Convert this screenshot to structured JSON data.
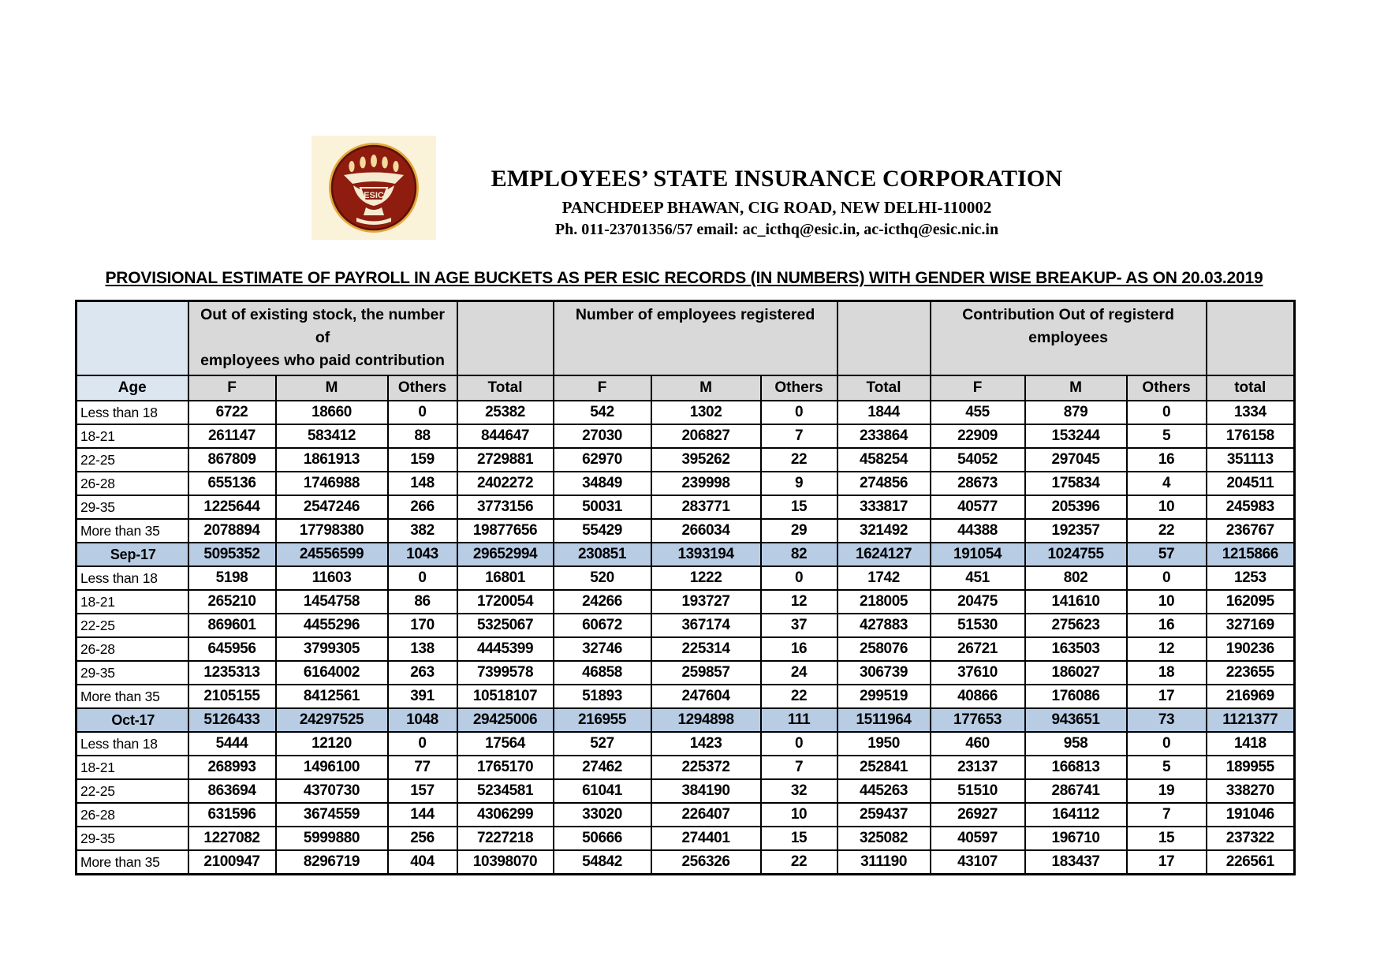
{
  "letterhead": {
    "org_name": "EMPLOYEES’ STATE INSURANCE CORPORATION",
    "address": "PANCHDEEP BHAWAN, CIG ROAD, NEW DELHI-110002",
    "contact": "Ph. 011-23701356/57 email: ac_icthq@esic.in, ac-icthq@esic.nic.in",
    "logo": {
      "acronym": "ESIC"
    }
  },
  "document_title": "PROVISIONAL ESTIMATE OF PAYROLL IN AGE BUCKETS AS PER ESIC RECORDS (IN NUMBERS) WITH GENDER WISE BREAKUP- AS ON 20.03.2019",
  "table": {
    "group_headers": [
      "Out of existing stock, the number\nof\nemployees who paid contribution",
      "Number of employees registered",
      "Contribution  Out of  registerd\nemployees"
    ],
    "column_headers": [
      "Age",
      "F",
      "M",
      "Others",
      "Total",
      "F",
      "M",
      "Others",
      "Total",
      "F",
      "M",
      "Others",
      "total"
    ],
    "colors": {
      "header_gray": "#d9d9d9",
      "age_header_blue": "#dce6f1",
      "highlight_blue": "#b8cce4",
      "border": "#000000"
    },
    "rows": [
      {
        "label": "Less than 18",
        "highlight": false,
        "values": [
          6722,
          18660,
          0,
          25382,
          542,
          1302,
          0,
          1844,
          455,
          879,
          0,
          1334
        ]
      },
      {
        "label": "18-21",
        "highlight": false,
        "values": [
          261147,
          583412,
          88,
          844647,
          27030,
          206827,
          7,
          233864,
          22909,
          153244,
          5,
          176158
        ]
      },
      {
        "label": "22-25",
        "highlight": false,
        "values": [
          867809,
          1861913,
          159,
          2729881,
          62970,
          395262,
          22,
          458254,
          54052,
          297045,
          16,
          351113
        ]
      },
      {
        "label": "26-28",
        "highlight": false,
        "values": [
          655136,
          1746988,
          148,
          2402272,
          34849,
          239998,
          9,
          274856,
          28673,
          175834,
          4,
          204511
        ]
      },
      {
        "label": "29-35",
        "highlight": false,
        "values": [
          1225644,
          2547246,
          266,
          3773156,
          50031,
          283771,
          15,
          333817,
          40577,
          205396,
          10,
          245983
        ]
      },
      {
        "label": "More than 35",
        "highlight": false,
        "values": [
          2078894,
          17798380,
          382,
          19877656,
          55429,
          266034,
          29,
          321492,
          44388,
          192357,
          22,
          236767
        ]
      },
      {
        "label": "Sep-17",
        "highlight": true,
        "values": [
          5095352,
          24556599,
          1043,
          29652994,
          230851,
          1393194,
          82,
          1624127,
          191054,
          1024755,
          57,
          1215866
        ]
      },
      {
        "label": "Less than 18",
        "highlight": false,
        "values": [
          5198,
          11603,
          0,
          16801,
          520,
          1222,
          0,
          1742,
          451,
          802,
          0,
          1253
        ]
      },
      {
        "label": "18-21",
        "highlight": false,
        "values": [
          265210,
          1454758,
          86,
          1720054,
          24266,
          193727,
          12,
          218005,
          20475,
          141610,
          10,
          162095
        ]
      },
      {
        "label": "22-25",
        "highlight": false,
        "values": [
          869601,
          4455296,
          170,
          5325067,
          60672,
          367174,
          37,
          427883,
          51530,
          275623,
          16,
          327169
        ]
      },
      {
        "label": "26-28",
        "highlight": false,
        "values": [
          645956,
          3799305,
          138,
          4445399,
          32746,
          225314,
          16,
          258076,
          26721,
          163503,
          12,
          190236
        ]
      },
      {
        "label": "29-35",
        "highlight": false,
        "values": [
          1235313,
          6164002,
          263,
          7399578,
          46858,
          259857,
          24,
          306739,
          37610,
          186027,
          18,
          223655
        ]
      },
      {
        "label": "More than 35",
        "highlight": false,
        "values": [
          2105155,
          8412561,
          391,
          10518107,
          51893,
          247604,
          22,
          299519,
          40866,
          176086,
          17,
          216969
        ]
      },
      {
        "label": "Oct-17",
        "highlight": true,
        "values": [
          5126433,
          24297525,
          1048,
          29425006,
          216955,
          1294898,
          111,
          1511964,
          177653,
          943651,
          73,
          1121377
        ]
      },
      {
        "label": "Less than 18",
        "highlight": false,
        "values": [
          5444,
          12120,
          0,
          17564,
          527,
          1423,
          0,
          1950,
          460,
          958,
          0,
          1418
        ]
      },
      {
        "label": "18-21",
        "highlight": false,
        "values": [
          268993,
          1496100,
          77,
          1765170,
          27462,
          225372,
          7,
          252841,
          23137,
          166813,
          5,
          189955
        ]
      },
      {
        "label": "22-25",
        "highlight": false,
        "values": [
          863694,
          4370730,
          157,
          5234581,
          61041,
          384190,
          32,
          445263,
          51510,
          286741,
          19,
          338270
        ]
      },
      {
        "label": "26-28",
        "highlight": false,
        "values": [
          631596,
          3674559,
          144,
          4306299,
          33020,
          226407,
          10,
          259437,
          26927,
          164112,
          7,
          191046
        ]
      },
      {
        "label": "29-35",
        "highlight": false,
        "values": [
          1227082,
          5999880,
          256,
          7227218,
          50666,
          274401,
          15,
          325082,
          40597,
          196710,
          15,
          237322
        ]
      },
      {
        "label": "More than 35",
        "highlight": false,
        "values": [
          2100947,
          8296719,
          404,
          10398070,
          54842,
          256326,
          22,
          311190,
          43107,
          183437,
          17,
          226561
        ]
      }
    ]
  }
}
